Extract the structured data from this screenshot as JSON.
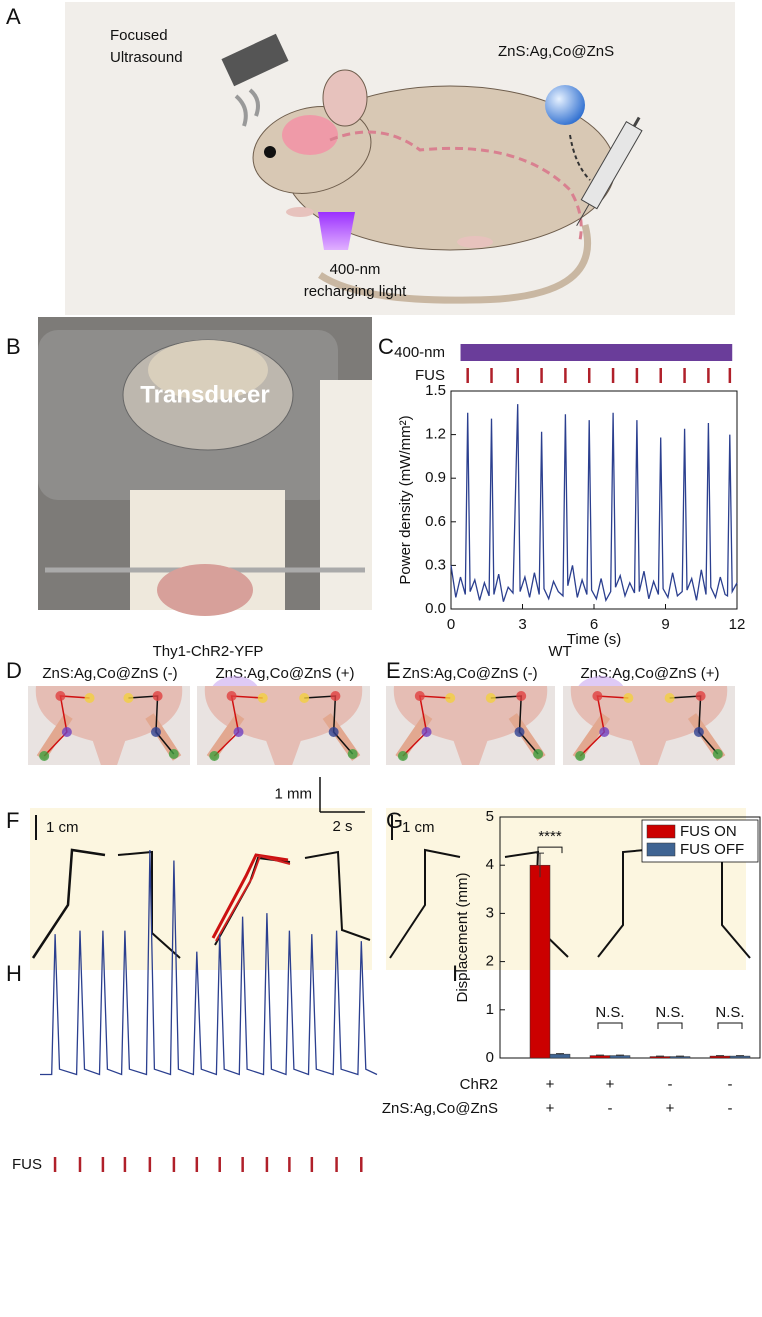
{
  "figure": {
    "a": {
      "letter": "A",
      "ultrasound": [
        "Focused",
        "Ultrasound"
      ],
      "particle": "ZnS:Ag,Co@ZnS",
      "light": [
        "400-nm",
        "recharging light"
      ]
    },
    "b": {
      "letter": "B",
      "label": "Transducer"
    },
    "d": {
      "letter": "D",
      "title": "Thy1-ChR2-YFP",
      "conditions": [
        "ZnS:Ag,Co@ZnS (-)",
        "ZnS:Ag,Co@ZnS (+)"
      ]
    },
    "e": {
      "letter": "E",
      "title": "WT",
      "conditions": [
        "ZnS:Ag,Co@ZnS (-)",
        "ZnS:Ag,Co@ZnS (+)"
      ]
    },
    "f": {
      "letter": "F",
      "scale": "1 cm"
    },
    "g": {
      "letter": "G",
      "scale": "1 cm"
    }
  },
  "chart_data": [
    {
      "letter": "C",
      "type": "line",
      "xlabel": "Time (s)",
      "ylabel": "Power density (mW/mm²)",
      "color": "#2b3f8f",
      "x": [
        0,
        0.2,
        0.4,
        0.6,
        0.7,
        0.8,
        1.0,
        1.2,
        1.4,
        1.6,
        1.7,
        1.8,
        2.0,
        2.2,
        2.4,
        2.6,
        2.8,
        2.9,
        3.1,
        3.3,
        3.5,
        3.7,
        3.8,
        3.9,
        4.1,
        4.3,
        4.5,
        4.7,
        4.8,
        4.9,
        5.1,
        5.3,
        5.5,
        5.7,
        5.8,
        5.9,
        6.1,
        6.3,
        6.5,
        6.7,
        6.8,
        6.9,
        7.1,
        7.3,
        7.5,
        7.7,
        7.8,
        7.9,
        8.1,
        8.3,
        8.5,
        8.7,
        8.8,
        8.9,
        9.1,
        9.3,
        9.5,
        9.7,
        9.8,
        9.9,
        10.1,
        10.3,
        10.5,
        10.7,
        10.8,
        10.9,
        11.1,
        11.3,
        11.5,
        11.6,
        11.7,
        11.8,
        12.0
      ],
      "values": [
        0.3,
        0.08,
        0.22,
        0.1,
        1.35,
        0.12,
        0.2,
        0.06,
        0.18,
        0.09,
        1.31,
        0.1,
        0.24,
        0.05,
        0.15,
        0.11,
        1.41,
        0.12,
        0.22,
        0.08,
        0.25,
        0.1,
        1.22,
        0.14,
        0.07,
        0.19,
        0.12,
        0.09,
        1.34,
        0.16,
        0.3,
        0.08,
        0.2,
        0.1,
        1.3,
        0.13,
        0.07,
        0.21,
        0.06,
        0.12,
        1.35,
        0.15,
        0.23,
        0.09,
        0.18,
        0.11,
        1.3,
        0.12,
        0.26,
        0.07,
        0.19,
        0.1,
        1.18,
        0.14,
        0.08,
        0.25,
        0.09,
        0.12,
        1.24,
        0.13,
        0.21,
        0.06,
        0.27,
        0.1,
        1.28,
        0.15,
        0.08,
        0.22,
        0.1,
        0.09,
        1.2,
        0.12,
        0.18
      ],
      "xlim": [
        0,
        12
      ],
      "xticks": [
        0,
        3,
        6,
        9,
        12
      ],
      "ylim": [
        0,
        1.5
      ],
      "yticks": [
        {
          "value": 0,
          "label": "0.0"
        },
        0.3,
        0.6,
        0.9,
        1.2,
        1.5
      ],
      "light_bar": {
        "label": "400-nm",
        "start": 0.4,
        "end": 11.8,
        "color": "#6a3d9a"
      },
      "fus": {
        "label": "FUS",
        "color": "#b0202a",
        "times": [
          0.7,
          1.7,
          2.8,
          3.8,
          4.8,
          5.8,
          6.8,
          7.8,
          8.8,
          9.8,
          10.8,
          11.7
        ]
      }
    },
    {
      "letter": "H",
      "type": "line",
      "color": "#2b3f8f",
      "x": [
        0,
        0.52,
        0.67,
        0.87,
        1.63,
        1.78,
        1.98,
        2.65,
        2.8,
        3.0,
        3.63,
        3.78,
        3.98,
        4.74,
        4.89,
        5.09,
        5.81,
        5.96,
        6.16,
        6.83,
        6.98,
        7.18,
        7.85,
        8.0,
        8.2,
        8.87,
        9.02,
        9.22,
        9.95,
        10.1,
        10.3,
        10.95,
        11.1,
        11.3,
        11.95,
        12.1,
        12.3,
        13.05,
        13.2,
        13.4,
        14.15,
        14.3,
        14.5,
        15
      ],
      "values": [
        0.1,
        0.1,
        4.1,
        0.25,
        0.1,
        4.2,
        0.25,
        0.1,
        4.2,
        0.25,
        0.1,
        4.2,
        0.25,
        0.1,
        6.5,
        0.25,
        0.1,
        6.2,
        0.25,
        0.1,
        3.6,
        0.25,
        0.1,
        4.1,
        0.25,
        0.1,
        4.6,
        0.25,
        0.1,
        4.7,
        0.25,
        0.1,
        4.2,
        0.25,
        0.1,
        4.1,
        0.25,
        0.1,
        4.2,
        0.25,
        0.1,
        3.9,
        0.25,
        0.1
      ],
      "xlim": [
        0,
        15
      ],
      "ylim": [
        0,
        6.5
      ],
      "scale_bars": [
        {
          "label": "1 mm",
          "value": 1,
          "axis": "y"
        },
        {
          "label": "2 s",
          "value": 2,
          "axis": "x"
        }
      ],
      "fus": {
        "label": "FUS",
        "color": "#b0202a",
        "times": [
          0.67,
          1.78,
          2.8,
          3.78,
          4.89,
          5.96,
          6.98,
          8.0,
          9.02,
          10.1,
          11.1,
          12.1,
          13.2,
          14.3
        ]
      }
    },
    {
      "letter": "I",
      "type": "bar",
      "ylabel": "Displacement (mm)",
      "category_rows": [
        {
          "label": "ChR2",
          "values": [
            "+",
            "+",
            "-",
            "-"
          ]
        },
        {
          "label": "ZnS:Ag,Co@ZnS",
          "values": [
            "+",
            "-",
            "+",
            "-"
          ]
        }
      ],
      "series": [
        {
          "name": "FUS ON",
          "color": "#cc0000",
          "values": [
            4.0,
            0.05,
            0.03,
            0.04
          ],
          "errors": [
            0.25,
            0.01,
            0.01,
            0.01
          ]
        },
        {
          "name": "FUS OFF",
          "color": "#3f6493",
          "values": [
            0.08,
            0.05,
            0.03,
            0.04
          ],
          "errors": [
            0.01,
            0.01,
            0.01,
            0.01
          ]
        }
      ],
      "significance": [
        "****",
        "N.S.",
        "N.S.",
        "N.S."
      ],
      "ylim": [
        0,
        5
      ],
      "yticks": [
        0,
        1,
        2,
        3,
        4,
        5
      ],
      "legend": "upper right"
    }
  ]
}
